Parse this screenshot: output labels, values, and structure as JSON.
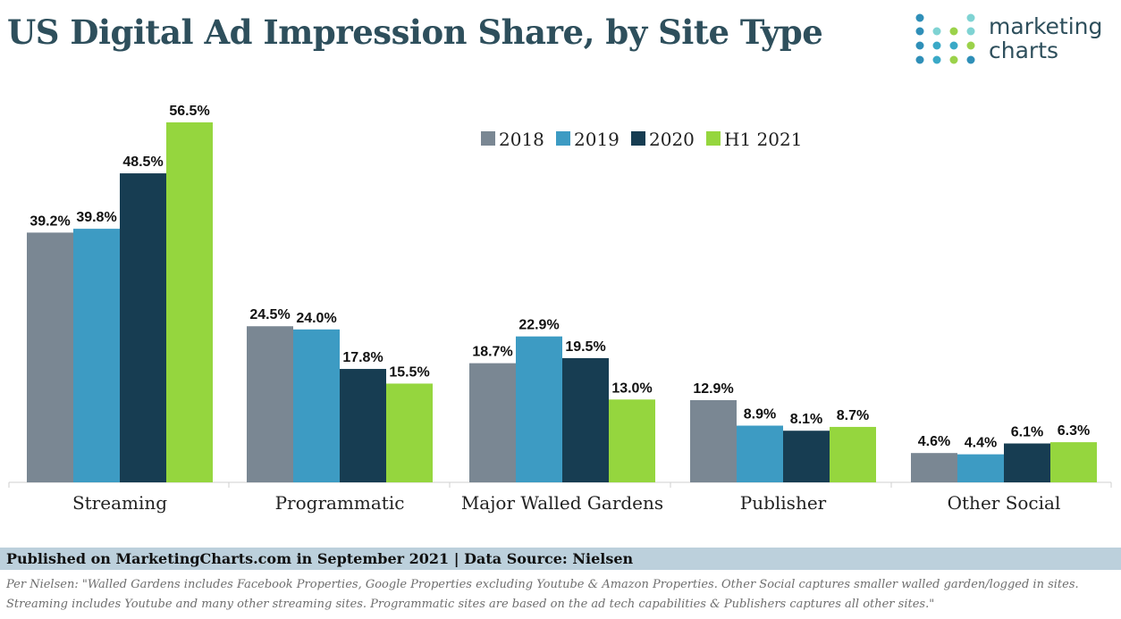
{
  "header": {
    "title": "US Digital Ad Impression Share, by Site Type",
    "logo": {
      "line1": "marketing",
      "line2": "charts"
    }
  },
  "chart_data": {
    "type": "bar",
    "categories": [
      "Streaming",
      "Programmatic",
      "Major Walled Gardens",
      "Publisher",
      "Other Social"
    ],
    "series": [
      {
        "name": "2018",
        "color": "#7a8793",
        "values": [
          39.2,
          24.5,
          18.7,
          12.9,
          4.6
        ]
      },
      {
        "name": "2019",
        "color": "#3d9bc3",
        "values": [
          39.8,
          24.0,
          22.9,
          8.9,
          4.4
        ]
      },
      {
        "name": "2020",
        "color": "#173d52",
        "values": [
          48.5,
          17.8,
          19.5,
          8.1,
          6.1
        ]
      },
      {
        "name": "H1 2021",
        "color": "#95d63e",
        "values": [
          56.5,
          15.5,
          13.0,
          8.7,
          6.3
        ]
      }
    ],
    "value_labels": [
      [
        "39.2%",
        "24.5%",
        "18.7%",
        "12.9%",
        "4.6%"
      ],
      [
        "39.8%",
        "24.0%",
        "22.9%",
        "8.9%",
        "4.4%"
      ],
      [
        "48.5%",
        "17.8%",
        "19.5%",
        "8.1%",
        "6.1%"
      ],
      [
        "56.5%",
        "15.5%",
        "13.0%",
        "8.7%",
        "6.3%"
      ]
    ],
    "ylim": [
      0,
      60
    ],
    "grid": false,
    "legend_position": "top-center"
  },
  "footer": {
    "published": "Published on MarketingCharts.com in September 2021 | Data Source: Nielsen",
    "note": "Per Nielsen: \"Walled Gardens includes Facebook Properties, Google Properties excluding Youtube & Amazon Properties. Other Social captures smaller walled garden/logged in sites. Streaming includes Youtube and many other streaming sites. Programmatic sites are based on the ad tech capabilities & Publishers captures all other sites.\""
  },
  "colors": {
    "title": "#2e4f5c",
    "footer_bar": "#bcd0dc",
    "note": "#6e6e6e"
  }
}
